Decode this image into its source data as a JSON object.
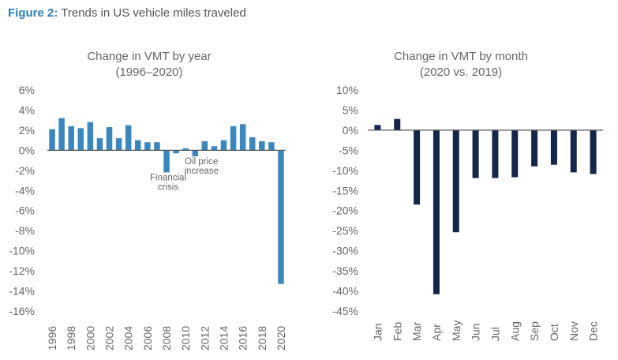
{
  "figure": {
    "label": "Figure 2:",
    "title": "Trends in US vehicle miles traveled"
  },
  "colors": {
    "annual_bar": "#3a86bd",
    "monthly_bar": "#14264a",
    "axis": "#555555",
    "text": "#666666",
    "accent": "#2f7fb6"
  },
  "chart_data": [
    {
      "type": "bar",
      "title": "Change in VMT by year",
      "subtitle": "(1996–2020)",
      "categories": [
        "1996",
        "1997",
        "1998",
        "1999",
        "2000",
        "2001",
        "2002",
        "2003",
        "2004",
        "2005",
        "2006",
        "2007",
        "2008",
        "2009",
        "2010",
        "2011",
        "2012",
        "2013",
        "2014",
        "2015",
        "2016",
        "2017",
        "2018",
        "2019",
        "2020"
      ],
      "values": [
        2.1,
        3.2,
        2.4,
        2.2,
        2.8,
        1.2,
        2.3,
        1.2,
        2.5,
        1.0,
        0.8,
        0.8,
        -2.2,
        -0.3,
        0.2,
        -0.6,
        0.9,
        0.4,
        1.0,
        2.4,
        2.6,
        1.3,
        0.9,
        0.8,
        -13.3
      ],
      "x_tick_labels": [
        "1996",
        "1998",
        "2000",
        "2002",
        "2004",
        "2006",
        "2008",
        "2010",
        "2012",
        "2014",
        "2016",
        "2018",
        "2020"
      ],
      "y_ticks": [
        6,
        4,
        2,
        0,
        -2,
        -4,
        -6,
        -8,
        -10,
        -12,
        -14,
        -16
      ],
      "y_tick_labels": [
        "6%",
        "4%",
        "2%",
        "0%",
        "-2%",
        "-4%",
        "-6%",
        "-8%",
        "-10%",
        "-12%",
        "-14%",
        "-16%"
      ],
      "ylim": [
        -16,
        6
      ],
      "xlabel": "",
      "ylabel": "",
      "annotations": [
        {
          "category": "2008",
          "lines": [
            "Financial",
            "crisis"
          ]
        },
        {
          "category": "2011",
          "lines": [
            "Oil price",
            "increase"
          ]
        }
      ]
    },
    {
      "type": "bar",
      "title": "Change in VMT by month",
      "subtitle": "(2020 vs. 2019)",
      "categories": [
        "Jan",
        "Feb",
        "Mar",
        "Apr",
        "May",
        "Jun",
        "Jul",
        "Aug",
        "Sep",
        "Oct",
        "Nov",
        "Dec"
      ],
      "values": [
        1.3,
        2.8,
        -18.5,
        -40.8,
        -25.4,
        -11.9,
        -11.9,
        -11.7,
        -9.0,
        -8.6,
        -10.5,
        -10.9
      ],
      "y_ticks": [
        10,
        5,
        0,
        -5,
        -10,
        -15,
        -20,
        -25,
        -30,
        -35,
        -40,
        -45
      ],
      "y_tick_labels": [
        "10%",
        "5%",
        "0%",
        "-5%",
        "-10%",
        "-15%",
        "-20%",
        "-25%",
        "-30%",
        "-35%",
        "-40%",
        "-45%"
      ],
      "ylim": [
        -45,
        10
      ],
      "xlabel": "",
      "ylabel": ""
    }
  ]
}
